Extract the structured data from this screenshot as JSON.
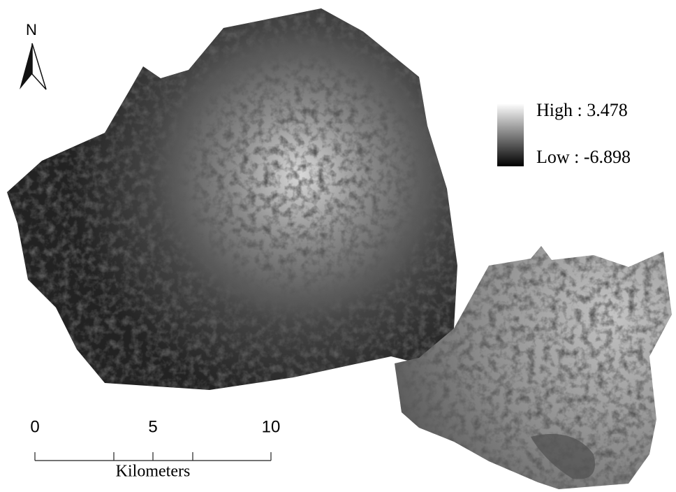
{
  "north_arrow": {
    "label": "N"
  },
  "legend": {
    "high": "High : 3.478",
    "low": "Low : -6.898"
  },
  "scale_bar": {
    "ticks": [
      0,
      5,
      10
    ],
    "unit": "Kilometers"
  }
}
